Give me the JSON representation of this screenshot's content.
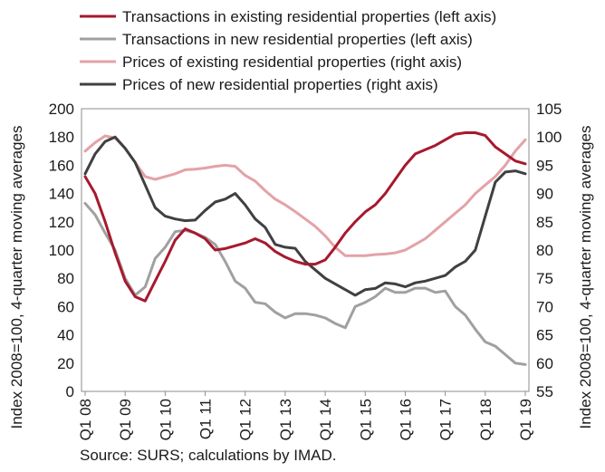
{
  "chart_data": {
    "type": "line",
    "x": [
      "Q1 08",
      "Q2 08",
      "Q3 08",
      "Q4 08",
      "Q1 09",
      "Q2 09",
      "Q3 09",
      "Q4 09",
      "Q1 10",
      "Q2 10",
      "Q3 10",
      "Q4 10",
      "Q1 11",
      "Q2 11",
      "Q3 11",
      "Q4 11",
      "Q1 12",
      "Q2 12",
      "Q3 12",
      "Q4 12",
      "Q1 13",
      "Q2 13",
      "Q3 13",
      "Q4 13",
      "Q1 14",
      "Q2 14",
      "Q3 14",
      "Q4 14",
      "Q1 15",
      "Q2 15",
      "Q3 15",
      "Q4 15",
      "Q1 16",
      "Q2 16",
      "Q3 16",
      "Q4 16",
      "Q1 17",
      "Q2 17",
      "Q3 17",
      "Q4 17",
      "Q1 18",
      "Q2 18",
      "Q3 18",
      "Q4 18",
      "Q1 19"
    ],
    "x_tick_labels": [
      "Q1 08",
      "Q1 09",
      "Q1 10",
      "Q1 11",
      "Q1 12",
      "Q1 13",
      "Q1 14",
      "Q1 15",
      "Q1 16",
      "Q1 17",
      "Q1 18",
      "Q1 19"
    ],
    "x_tick_step": 4,
    "ylabel_left": "Index 2008=100, 4-quarter moving averages",
    "ylabel_right": "Index 2008=100, 4-quarter moving averages",
    "ylim_left": [
      0,
      200
    ],
    "yticks_left": [
      0,
      20,
      40,
      60,
      80,
      100,
      120,
      140,
      160,
      180,
      200
    ],
    "ylim_right": [
      55,
      105
    ],
    "yticks_right": [
      55,
      60,
      65,
      70,
      75,
      80,
      85,
      90,
      95,
      100,
      105
    ],
    "grid": false,
    "legend_position": "top",
    "source": "Source: SURS; calculations by IMAD.",
    "series": [
      {
        "name": "Transactions in existing residential properties (left axis)",
        "axis": "left",
        "color": "#a6192e",
        "values": [
          152,
          140,
          120,
          98,
          78,
          67,
          64,
          78,
          92,
          107,
          115,
          112,
          108,
          100,
          101,
          103,
          105,
          108,
          105,
          99,
          95,
          92,
          90,
          90,
          93,
          102,
          112,
          120,
          127,
          132,
          140,
          150,
          160,
          168,
          171,
          174,
          178,
          182,
          183,
          183,
          181,
          173,
          168,
          163,
          161
        ]
      },
      {
        "name": "Transactions in new residential properties (left axis)",
        "axis": "left",
        "color": "#a0a0a0",
        "values": [
          133,
          125,
          112,
          100,
          80,
          68,
          74,
          94,
          102,
          113,
          114,
          112,
          109,
          104,
          92,
          78,
          73,
          63,
          62,
          56,
          52,
          55,
          55,
          54,
          52,
          48,
          45,
          60,
          63,
          67,
          73,
          70,
          70,
          73,
          73,
          70,
          71,
          60,
          54,
          44,
          35,
          32,
          26,
          20,
          19
        ]
      },
      {
        "name": "Prices of existing residential properties (right axis)",
        "axis": "right",
        "color": "#e3a2a7",
        "values": [
          97.5,
          99,
          100.2,
          99.8,
          98,
          95.5,
          93,
          92.5,
          93,
          93.5,
          94.2,
          94.3,
          94.5,
          94.8,
          95,
          94.8,
          93.2,
          92.2,
          90.5,
          89,
          88,
          86.8,
          85.5,
          84.2,
          82.5,
          80.5,
          79,
          79,
          79,
          79.2,
          79.3,
          79.5,
          80,
          81,
          82,
          83.5,
          85,
          86.5,
          88,
          90,
          91.5,
          93,
          95,
          97.5,
          99.5
        ]
      },
      {
        "name": "Prices of new residential properties (right axis)",
        "axis": "right",
        "color": "#404040",
        "values": [
          93.5,
          97,
          99.2,
          100,
          98,
          95.5,
          91.5,
          87.5,
          86,
          85.5,
          85.2,
          85.3,
          87,
          88.5,
          89,
          90,
          88,
          85.5,
          84,
          81,
          80.5,
          80.3,
          78,
          76.5,
          75,
          74,
          73,
          72,
          73,
          73.2,
          74.2,
          74,
          73.5,
          74.2,
          74.5,
          75,
          75.5,
          77,
          78,
          80,
          86,
          92,
          93.8,
          94,
          93.5
        ]
      }
    ]
  }
}
